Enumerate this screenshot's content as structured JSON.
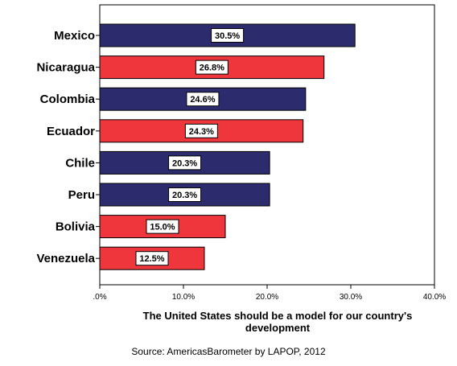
{
  "chart_data": {
    "type": "bar",
    "orientation": "horizontal",
    "categories": [
      "Mexico",
      "Nicaragua",
      "Colombia",
      "Ecuador",
      "Chile",
      "Peru",
      "Bolivia",
      "Venezuela"
    ],
    "values": [
      30.5,
      26.8,
      24.6,
      24.3,
      20.3,
      20.3,
      15.0,
      12.5
    ],
    "data_labels": [
      "30.5%",
      "26.8%",
      "24.6%",
      "24.3%",
      "20.3%",
      "20.3%",
      "15.0%",
      "12.5%"
    ],
    "bar_colors": [
      "#2b2b6e",
      "#f0363d",
      "#2b2b6e",
      "#f0363d",
      "#2b2b6e",
      "#2b2b6e",
      "#f0363d",
      "#f0363d"
    ],
    "xlim": [
      0,
      40
    ],
    "xticks": [
      0,
      10,
      20,
      30,
      40
    ],
    "xtick_labels": [
      ".0%",
      "10.0%",
      "20.0%",
      "30.0%",
      "40.0%"
    ],
    "xlabel": "The United States should be a model for our country's development",
    "ylabel": "",
    "grid": false,
    "legend": "none"
  },
  "source_note": "Source: AmericasBarometer by LAPOP, 2012"
}
